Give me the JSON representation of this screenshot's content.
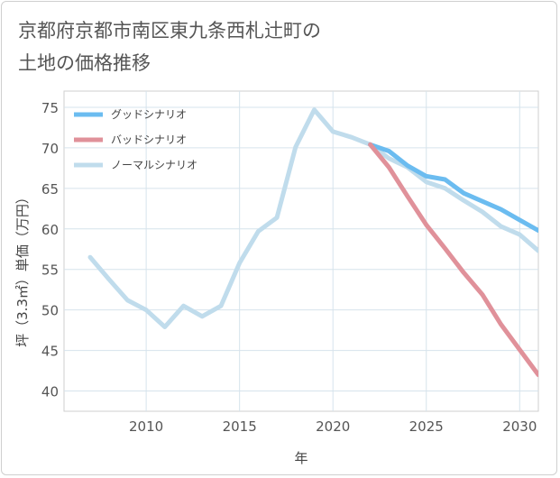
{
  "chart_data": {
    "type": "line",
    "title": "京都府京都市南区東九条西札辻町の\n土地の価格推移",
    "xlabel": "年",
    "ylabel": "坪（3.3㎡）単価（万円）",
    "xlim": [
      2005.6,
      2031
    ],
    "ylim": [
      37.5,
      77
    ],
    "xticks": [
      2010,
      2015,
      2020,
      2025,
      2030
    ],
    "yticks": [
      40,
      45,
      50,
      55,
      60,
      65,
      70,
      75
    ],
    "grid": true,
    "legend_position": "top-left",
    "series": [
      {
        "name": "グッドシナリオ",
        "color": "#6bbcf0",
        "x": [
          2022,
          2023,
          2024,
          2025,
          2026,
          2027,
          2028,
          2029,
          2030,
          2031
        ],
        "y": [
          70.4,
          69.6,
          67.8,
          66.5,
          66.1,
          64.4,
          63.4,
          62.4,
          61.1,
          59.8
        ]
      },
      {
        "name": "バッドシナリオ",
        "color": "#e0919a",
        "x": [
          2022,
          2023,
          2024,
          2025,
          2026,
          2027,
          2028,
          2029,
          2030,
          2031
        ],
        "y": [
          70.4,
          67.6,
          64.0,
          60.5,
          57.6,
          54.6,
          51.9,
          48.2,
          45.1,
          42.0
        ]
      },
      {
        "name": "ノーマルシナリオ",
        "color": "#c0dcec",
        "x": [
          2007,
          2008,
          2009,
          2010,
          2011,
          2012,
          2013,
          2014,
          2015,
          2016,
          2017,
          2018,
          2019,
          2020,
          2021,
          2022,
          2023,
          2024,
          2025,
          2026,
          2027,
          2028,
          2029,
          2030,
          2031
        ],
        "y": [
          56.5,
          53.8,
          51.2,
          50.0,
          47.9,
          50.5,
          49.2,
          50.5,
          55.8,
          59.7,
          61.4,
          70.1,
          74.7,
          72.0,
          71.3,
          70.4,
          68.7,
          67.6,
          65.8,
          65.0,
          63.5,
          62.1,
          60.3,
          59.3,
          57.3
        ]
      }
    ]
  }
}
